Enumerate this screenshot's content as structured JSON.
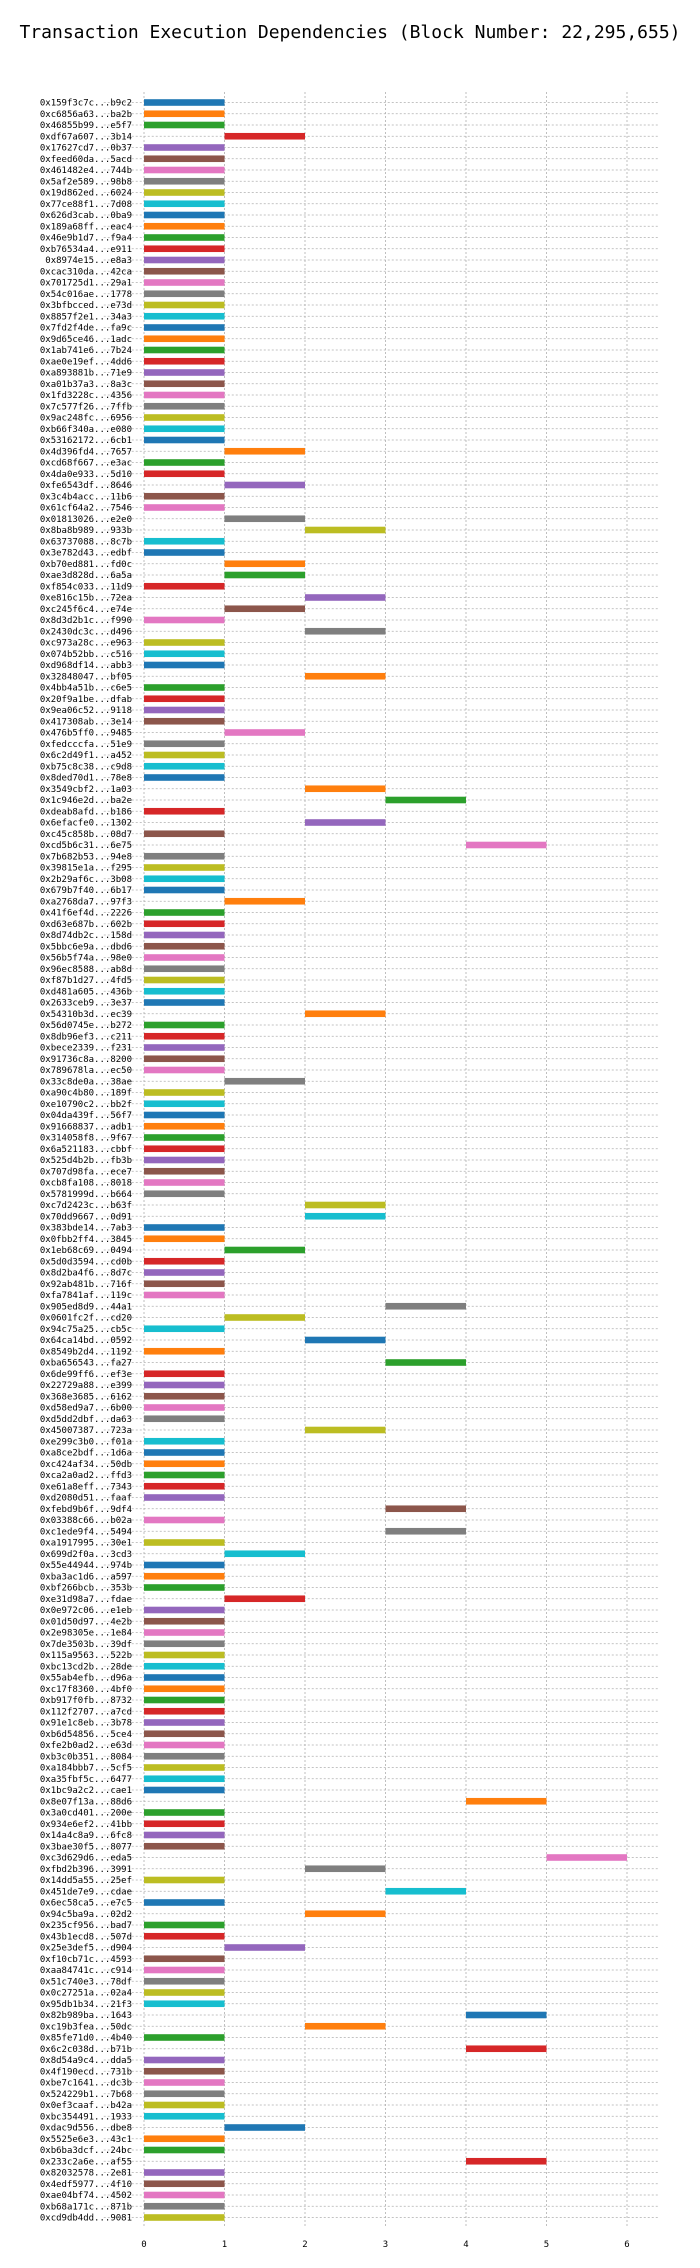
{
  "chart_data": {
    "type": "bar",
    "orientation": "horizontal-gantt",
    "title": "Transaction Execution Dependencies (Block Number: 22,295,655)",
    "xlabel": "",
    "ylabel": "",
    "xlim": [
      -0.5,
      6.4
    ],
    "xticks": [
      0,
      1,
      2,
      3,
      4,
      5,
      6
    ],
    "grid": true,
    "legend": "none",
    "palette": [
      "#1f77b4",
      "#ff7f0e",
      "#2ca02c",
      "#d62728",
      "#9467bd",
      "#8c564b",
      "#e377c2",
      "#7f7f7f",
      "#bcbd22",
      "#17becf"
    ],
    "transactions": [
      {
        "hash": "0x159f3c7c...b9c2",
        "start": 0
      },
      {
        "hash": "0xc6856a63...ba2b",
        "start": 0
      },
      {
        "hash": "0x46855b99...e5f7",
        "start": 0
      },
      {
        "hash": "0xdf67a607...3b14",
        "start": 1
      },
      {
        "hash": "0x17627cd7...0b37",
        "start": 0
      },
      {
        "hash": "0xfeed60da...5acd",
        "start": 0
      },
      {
        "hash": "0x461482e4...744b",
        "start": 0
      },
      {
        "hash": "0x5af2e589...98b8",
        "start": 0
      },
      {
        "hash": "0x19d862ed...6024",
        "start": 0
      },
      {
        "hash": "0x77ce88f1...7d08",
        "start": 0
      },
      {
        "hash": "0x626d3cab...0ba9",
        "start": 0
      },
      {
        "hash": "0x189a68ff...eac4",
        "start": 0
      },
      {
        "hash": "0x46e9b1d7...f9a4",
        "start": 0
      },
      {
        "hash": "0xb76534a4...e911",
        "start": 0
      },
      {
        "hash": "0x8974e15...e8a3",
        "start": 0
      },
      {
        "hash": "0xcac310da...42ca",
        "start": 0
      },
      {
        "hash": "0x701725d1...29a1",
        "start": 0
      },
      {
        "hash": "0x54c016ae...1778",
        "start": 0
      },
      {
        "hash": "0x3bfbcced...e73d",
        "start": 0
      },
      {
        "hash": "0x8857f2e1...34a3",
        "start": 0
      },
      {
        "hash": "0x7fd2f4de...fa9c",
        "start": 0
      },
      {
        "hash": "0x9d65ce46...1adc",
        "start": 0
      },
      {
        "hash": "0x1ab741e6...7b24",
        "start": 0
      },
      {
        "hash": "0xae0e19ef...4dd6",
        "start": 0
      },
      {
        "hash": "0xa893881b...71e9",
        "start": 0
      },
      {
        "hash": "0xa01b37a3...8a3c",
        "start": 0
      },
      {
        "hash": "0x1fd3228c...4356",
        "start": 0
      },
      {
        "hash": "0x7c577f26...7ffb",
        "start": 0
      },
      {
        "hash": "0x9ac248fc...6956",
        "start": 0
      },
      {
        "hash": "0xb66f340a...e080",
        "start": 0
      },
      {
        "hash": "0x53162172...6cb1",
        "start": 0
      },
      {
        "hash": "0x4d396fd4...7657",
        "start": 1
      },
      {
        "hash": "0xcd68f667...e3ac",
        "start": 0
      },
      {
        "hash": "0x4da0e933...5d10",
        "start": 0
      },
      {
        "hash": "0xfe6543df...8646",
        "start": 1
      },
      {
        "hash": "0x3c4b4acc...11b6",
        "start": 0
      },
      {
        "hash": "0x61cf64a2...7546",
        "start": 0
      },
      {
        "hash": "0x01813026...e2e0",
        "start": 1
      },
      {
        "hash": "0x8ba8b989...933b",
        "start": 2
      },
      {
        "hash": "0x63737088...8c7b",
        "start": 0
      },
      {
        "hash": "0x3e782d43...edbf",
        "start": 0
      },
      {
        "hash": "0xb70ed881...fd0c",
        "start": 1
      },
      {
        "hash": "0xae3d828d...6a5a",
        "start": 1
      },
      {
        "hash": "0xf854c033...11d9",
        "start": 0
      },
      {
        "hash": "0xe816c15b...72ea",
        "start": 2
      },
      {
        "hash": "0xc245f6c4...e74e",
        "start": 1
      },
      {
        "hash": "0x8d3d2b1c...f990",
        "start": 0
      },
      {
        "hash": "0x2430dc3c...d496",
        "start": 2
      },
      {
        "hash": "0xc973a28c...e963",
        "start": 0
      },
      {
        "hash": "0x074b52bb...c516",
        "start": 0
      },
      {
        "hash": "0xd968df14...abb3",
        "start": 0
      },
      {
        "hash": "0x32848047...bf05",
        "start": 2
      },
      {
        "hash": "0x4bb4a51b...c6e5",
        "start": 0
      },
      {
        "hash": "0x20f9a1be...dfab",
        "start": 0
      },
      {
        "hash": "0x9ea06c52...9118",
        "start": 0
      },
      {
        "hash": "0x417308ab...3e14",
        "start": 0
      },
      {
        "hash": "0x476b5ff0...9485",
        "start": 1
      },
      {
        "hash": "0xfedcccfa...51e9",
        "start": 0
      },
      {
        "hash": "0x6c2d49f1...a452",
        "start": 0
      },
      {
        "hash": "0xb75c8c38...c9d8",
        "start": 0
      },
      {
        "hash": "0x8ded70d1...78e8",
        "start": 0
      },
      {
        "hash": "0x3549cbf2...1a03",
        "start": 2
      },
      {
        "hash": "0x1c946e2d...ba2e",
        "start": 3
      },
      {
        "hash": "0xdeab8afd...b186",
        "start": 0
      },
      {
        "hash": "0x6efacfe0...1302",
        "start": 2
      },
      {
        "hash": "0xc45c858b...08d7",
        "start": 0
      },
      {
        "hash": "0xcd5b6c31...6e75",
        "start": 4
      },
      {
        "hash": "0x7b682b53...94e8",
        "start": 0
      },
      {
        "hash": "0x39815e1a...f295",
        "start": 0
      },
      {
        "hash": "0x2b29af6c...3b08",
        "start": 0
      },
      {
        "hash": "0x679b7f40...6b17",
        "start": 0
      },
      {
        "hash": "0xa2768da7...97f3",
        "start": 1
      },
      {
        "hash": "0x41f6ef4d...2226",
        "start": 0
      },
      {
        "hash": "0xd63e687b...602b",
        "start": 0
      },
      {
        "hash": "0x8d74db2c...158d",
        "start": 0
      },
      {
        "hash": "0x5bbc6e9a...dbd6",
        "start": 0
      },
      {
        "hash": "0x56b5f74a...98e0",
        "start": 0
      },
      {
        "hash": "0x96ec8588...ab8d",
        "start": 0
      },
      {
        "hash": "0xf87b1d27...4fd5",
        "start": 0
      },
      {
        "hash": "0xd481a605...436b",
        "start": 0
      },
      {
        "hash": "0x2633ceb9...3e37",
        "start": 0
      },
      {
        "hash": "0x54310b3d...ec39",
        "start": 2
      },
      {
        "hash": "0x56d0745e...b272",
        "start": 0
      },
      {
        "hash": "0x8db96ef3...c211",
        "start": 0
      },
      {
        "hash": "0xbece2339...f231",
        "start": 0
      },
      {
        "hash": "0x91736c8a...8200",
        "start": 0
      },
      {
        "hash": "0x789678la...ec50",
        "start": 0
      },
      {
        "hash": "0x33c8de0a...38ae",
        "start": 1
      },
      {
        "hash": "0xa90c4b80...189f",
        "start": 0
      },
      {
        "hash": "0xe10790c2...bb2f",
        "start": 0
      },
      {
        "hash": "0x04da439f...56f7",
        "start": 0
      },
      {
        "hash": "0x91668837...adb1",
        "start": 0
      },
      {
        "hash": "0x314058f8...9f67",
        "start": 0
      },
      {
        "hash": "0x6a521183...cbbf",
        "start": 0
      },
      {
        "hash": "0x525d4b2b...fb3b",
        "start": 0
      },
      {
        "hash": "0x707d98fa...ece7",
        "start": 0
      },
      {
        "hash": "0xcb8fa108...8018",
        "start": 0
      },
      {
        "hash": "0x5781999d...b664",
        "start": 0
      },
      {
        "hash": "0xc7d2423c...b63f",
        "start": 2
      },
      {
        "hash": "0x70dd9667...0d91",
        "start": 2
      },
      {
        "hash": "0x383bde14...7ab3",
        "start": 0
      },
      {
        "hash": "0x0fbb2ff4...3845",
        "start": 0
      },
      {
        "hash": "0x1eb68c69...0494",
        "start": 1
      },
      {
        "hash": "0x5d0d3594...cd0b",
        "start": 0
      },
      {
        "hash": "0x8d2ba4f6...8d7c",
        "start": 0
      },
      {
        "hash": "0x92ab481b...716f",
        "start": 0
      },
      {
        "hash": "0xfa7841af...119c",
        "start": 0
      },
      {
        "hash": "0x905ed8d9...44a1",
        "start": 3
      },
      {
        "hash": "0x0601fc2f...cd20",
        "start": 1
      },
      {
        "hash": "0x94c75a25...cb5c",
        "start": 0
      },
      {
        "hash": "0x64ca14bd...0592",
        "start": 2
      },
      {
        "hash": "0x8549b2d4...1192",
        "start": 0
      },
      {
        "hash": "0xba656543...fa27",
        "start": 3
      },
      {
        "hash": "0x6de99ff6...ef3e",
        "start": 0
      },
      {
        "hash": "0x22729a88...e399",
        "start": 0
      },
      {
        "hash": "0x368e3685...6162",
        "start": 0
      },
      {
        "hash": "0xd58ed9a7...6b00",
        "start": 0
      },
      {
        "hash": "0xd5dd2dbf...da63",
        "start": 0
      },
      {
        "hash": "0x45007387...723a",
        "start": 2
      },
      {
        "hash": "0xe299c3b0...f01a",
        "start": 0
      },
      {
        "hash": "0xa8ce2bdf...1d6a",
        "start": 0
      },
      {
        "hash": "0xc424af34...50db",
        "start": 0
      },
      {
        "hash": "0xca2a0ad2...ffd3",
        "start": 0
      },
      {
        "hash": "0xe61a8eff...7343",
        "start": 0
      },
      {
        "hash": "0xd2080d51...faaf",
        "start": 0
      },
      {
        "hash": "0xfebd9b6f...9df4",
        "start": 3
      },
      {
        "hash": "0x03388c66...b02a",
        "start": 0
      },
      {
        "hash": "0xc1ede9f4...5494",
        "start": 3
      },
      {
        "hash": "0xa1917995...30e1",
        "start": 0
      },
      {
        "hash": "0x699d2f0a...3cd3",
        "start": 1
      },
      {
        "hash": "0x55e44944...974b",
        "start": 0
      },
      {
        "hash": "0xba3ac1d6...a597",
        "start": 0
      },
      {
        "hash": "0xbf266bcb...353b",
        "start": 0
      },
      {
        "hash": "0xe31d98a7...fdae",
        "start": 1
      },
      {
        "hash": "0x0e972c06...e1eb",
        "start": 0
      },
      {
        "hash": "0x01d50d97...4e2b",
        "start": 0
      },
      {
        "hash": "0x2e98305e...1e84",
        "start": 0
      },
      {
        "hash": "0x7de3503b...39df",
        "start": 0
      },
      {
        "hash": "0x115a9563...522b",
        "start": 0
      },
      {
        "hash": "0xbc13cd2b...28de",
        "start": 0
      },
      {
        "hash": "0x55ab4efb...d96a",
        "start": 0
      },
      {
        "hash": "0xc17f8360...4bf0",
        "start": 0
      },
      {
        "hash": "0xb917f0fb...8732",
        "start": 0
      },
      {
        "hash": "0x112f2707...a7cd",
        "start": 0
      },
      {
        "hash": "0x91e1c8eb...3b78",
        "start": 0
      },
      {
        "hash": "0xb6d54856...5ce4",
        "start": 0
      },
      {
        "hash": "0xfe2b0ad2...e63d",
        "start": 0
      },
      {
        "hash": "0xb3c0b351...8084",
        "start": 0
      },
      {
        "hash": "0xa184bbb7...5cf5",
        "start": 0
      },
      {
        "hash": "0xa35fbf5c...6477",
        "start": 0
      },
      {
        "hash": "0x1bc9a2c2...cae1",
        "start": 0
      },
      {
        "hash": "0x8e07f13a...88d6",
        "start": 4
      },
      {
        "hash": "0x3a0cd401...200e",
        "start": 0
      },
      {
        "hash": "0x934e6ef2...41bb",
        "start": 0
      },
      {
        "hash": "0x14a4c8a9...6fc8",
        "start": 0
      },
      {
        "hash": "0x3bae30f5...8077",
        "start": 0
      },
      {
        "hash": "0xc3d629d6...eda5",
        "start": 5
      },
      {
        "hash": "0xfbd2b396...3991",
        "start": 2
      },
      {
        "hash": "0x14dd5a55...25ef",
        "start": 0
      },
      {
        "hash": "0x451de7e9...cdae",
        "start": 3
      },
      {
        "hash": "0x6ec58ca5...e7c5",
        "start": 0
      },
      {
        "hash": "0x94c5ba9a...02d2",
        "start": 2
      },
      {
        "hash": "0x235cf956...bad7",
        "start": 0
      },
      {
        "hash": "0x43b1ecd8...507d",
        "start": 0
      },
      {
        "hash": "0x25e3def5...d904",
        "start": 1
      },
      {
        "hash": "0xf10cb71c...4593",
        "start": 0
      },
      {
        "hash": "0xaa84741c...c914",
        "start": 0
      },
      {
        "hash": "0x51c740e3...78df",
        "start": 0
      },
      {
        "hash": "0x0c27251a...02a4",
        "start": 0
      },
      {
        "hash": "0x95db1b34...21f3",
        "start": 0
      },
      {
        "hash": "0x82b989ba...1643",
        "start": 4
      },
      {
        "hash": "0xc19b3fea...50dc",
        "start": 2
      },
      {
        "hash": "0x85fe71d0...4b40",
        "start": 0
      },
      {
        "hash": "0x6c2c038d...b71b",
        "start": 4
      },
      {
        "hash": "0x8d54a9c4...dda5",
        "start": 0
      },
      {
        "hash": "0x4f190ecd...731b",
        "start": 0
      },
      {
        "hash": "0xbe7c1641...dc3b",
        "start": 0
      },
      {
        "hash": "0x524229b1...7b68",
        "start": 0
      },
      {
        "hash": "0x0ef3caaf...b42a",
        "start": 0
      },
      {
        "hash": "0xbc354491...1933",
        "start": 0
      },
      {
        "hash": "0xdac9d556...dbe8",
        "start": 1
      },
      {
        "hash": "0x5525e6e3...43c1",
        "start": 0
      },
      {
        "hash": "0xb6ba3dcf...24bc",
        "start": 0
      },
      {
        "hash": "0x233c2a6e...af55",
        "start": 4
      },
      {
        "hash": "0x82032578...2e81",
        "start": 0
      },
      {
        "hash": "0x4edf5977...4f10",
        "start": 0
      },
      {
        "hash": "0xae04bf74...4502",
        "start": 0
      },
      {
        "hash": "0xb68a171c...871b",
        "start": 0
      },
      {
        "hash": "0xcd9db4dd...9081",
        "start": 0
      }
    ]
  }
}
